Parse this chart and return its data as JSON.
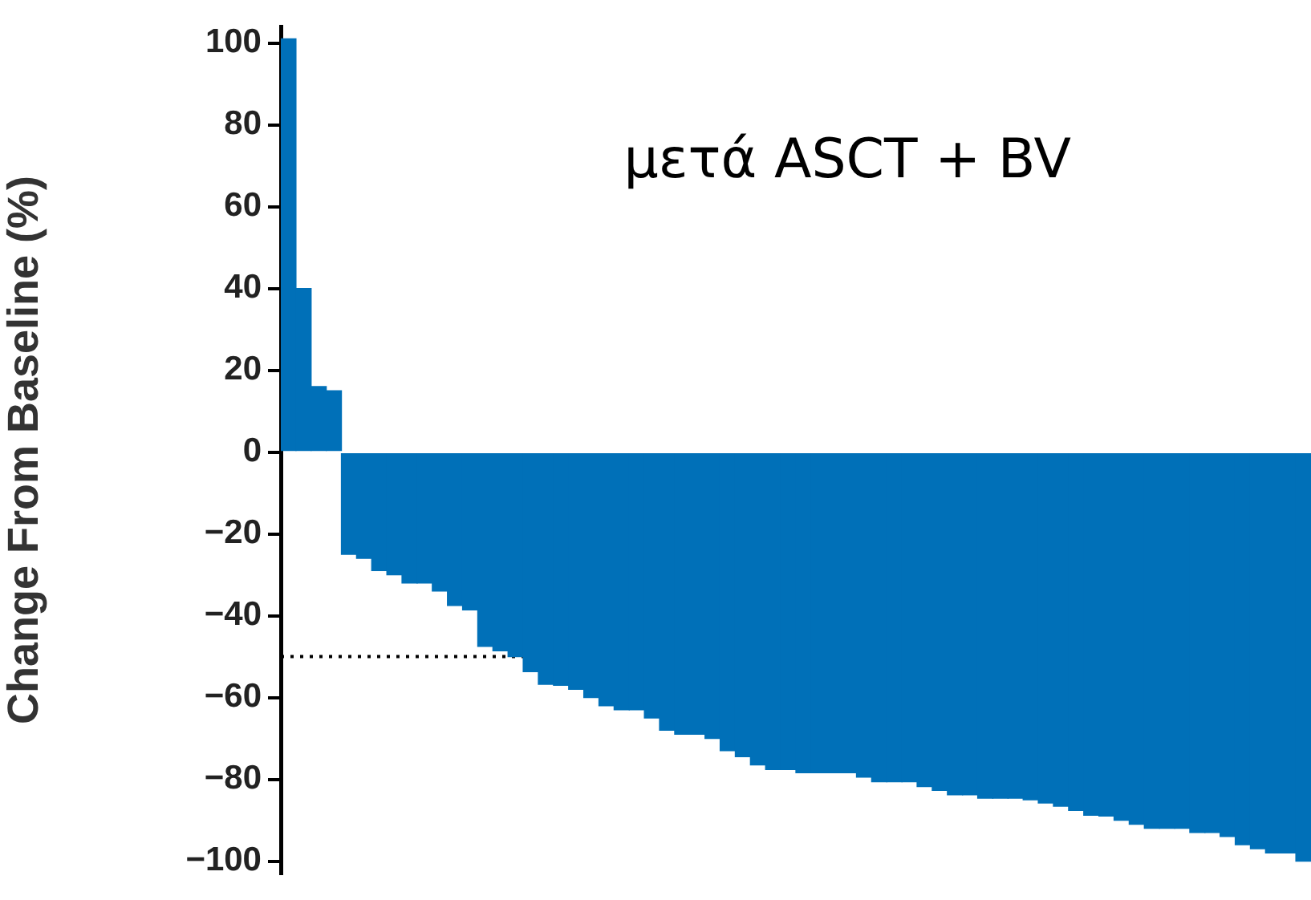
{
  "chart_data": {
    "type": "bar",
    "ylabel": "Change From Baseline (%)",
    "annotations": [
      "μετά ASCT + BV"
    ],
    "categories": [
      null,
      null,
      null,
      null,
      null,
      null,
      null,
      null,
      null,
      null,
      null,
      null,
      null,
      null,
      null,
      null,
      null,
      null,
      null,
      null,
      null,
      null,
      null,
      null,
      null,
      null,
      null,
      null,
      null,
      null,
      null,
      null,
      null,
      null,
      null,
      null,
      null,
      null,
      null,
      null,
      null,
      null,
      null,
      null,
      null,
      null,
      null,
      null,
      null,
      null,
      null,
      null,
      null,
      null,
      null,
      null,
      null,
      null,
      null,
      null,
      null,
      null,
      null,
      null,
      null,
      null,
      null,
      null
    ],
    "values": [
      101,
      40,
      16,
      15,
      -25,
      -26,
      -29,
      -30,
      -32,
      -32,
      -34,
      -37.5,
      -38.6,
      -47.5,
      -48.6,
      -50,
      -53.7,
      -56.8,
      -57,
      -58,
      -60,
      -62,
      -63,
      -63,
      -65,
      -68,
      -69,
      -69,
      -70,
      -73,
      -74.5,
      -76.5,
      -77.6,
      -77.6,
      -78.4,
      -78.4,
      -78.4,
      -78.4,
      -79.5,
      -80.6,
      -80.6,
      -80.6,
      -81.8,
      -82.7,
      -83.8,
      -83.8,
      -84.6,
      -84.6,
      -84.6,
      -85,
      -85.8,
      -86.6,
      -87.6,
      -88.8,
      -89,
      -90,
      -91,
      -92,
      -92,
      -92,
      -93,
      -93,
      -94,
      -96,
      -97,
      -98,
      -98,
      -100
    ],
    "color": "#0070b8",
    "ylim": [
      -103,
      104
    ],
    "yticks": [
      -100,
      -80,
      -60,
      -40,
      -20,
      0,
      20,
      40,
      60,
      80,
      100
    ],
    "ref_lines": [
      {
        "axis": "y",
        "value": -50,
        "color": "#000000",
        "line_style": "dotted"
      }
    ],
    "tick_labels": "y",
    "grid": false,
    "legend": false
  }
}
